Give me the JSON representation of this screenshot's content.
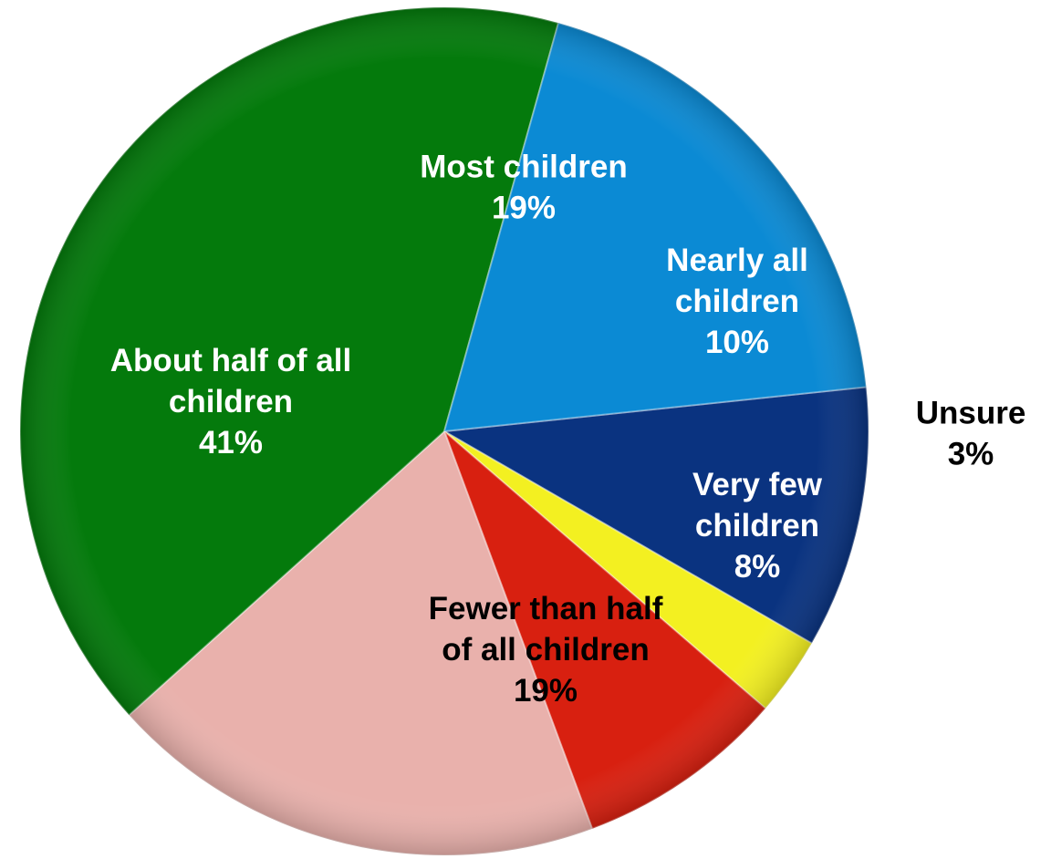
{
  "chart_data": {
    "type": "pie",
    "start_angle_deg": -6,
    "direction": "clockwise",
    "slices": [
      {
        "label_lines": [
          "Nearly all",
          "children"
        ],
        "value": 10,
        "value_label": "10%",
        "color": "#0a3380",
        "label_color": "#ffffff",
        "label_position": "inside"
      },
      {
        "label_lines": [
          "Unsure"
        ],
        "value": 3,
        "value_label": "3%",
        "color": "#f3f021",
        "label_color": "#000000",
        "label_position": "outside"
      },
      {
        "label_lines": [
          "Very few",
          "children"
        ],
        "value": 8,
        "value_label": "8%",
        "color": "#d82010",
        "label_color": "#ffffff",
        "label_position": "inside"
      },
      {
        "label_lines": [
          "Fewer than half",
          "of all children"
        ],
        "value": 19,
        "value_label": "19%",
        "color": "#e9b1ac",
        "label_color": "#000000",
        "label_position": "inside"
      },
      {
        "label_lines": [
          "About half of all",
          "children"
        ],
        "value": 41,
        "value_label": "41%",
        "color": "#047a0c",
        "label_color": "#ffffff",
        "label_position": "inside"
      },
      {
        "label_lines": [
          "Most children"
        ],
        "value": 19,
        "value_label": "19%",
        "color": "#0b8ad4",
        "label_color": "#ffffff",
        "label_position": "inside"
      }
    ]
  }
}
